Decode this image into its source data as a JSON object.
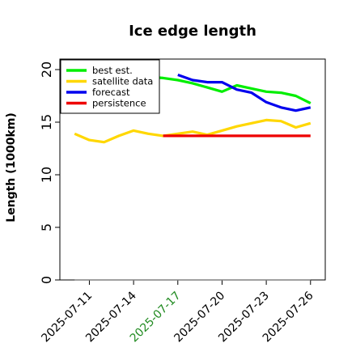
{
  "chart_data": {
    "type": "line",
    "title": "Ice edge length",
    "ylabel": "Length (1000km)",
    "xlabel": "",
    "ylim": [
      0,
      21
    ],
    "xlim": [
      "2025-07-09",
      "2025-07-27"
    ],
    "yticks": [
      0,
      5,
      10,
      15,
      20
    ],
    "ytick_labels": [
      "0",
      "5",
      "10",
      "15",
      "20"
    ],
    "xticks": [
      "2025-07-11",
      "2025-07-14",
      "2025-07-17",
      "2025-07-20",
      "2025-07-23",
      "2025-07-26"
    ],
    "xtick_labels": [
      "2025-07-11",
      "2025-07-14",
      "2025-07-17",
      "2025-07-20",
      "2025-07-23",
      "2025-07-26"
    ],
    "xtick_colors": [
      "#000000",
      "#000000",
      "#228b22",
      "#000000",
      "#000000",
      "#000000"
    ],
    "grid": false,
    "legend_position": "top-left",
    "baseline": {
      "y": 0,
      "x_range": [
        "2025-07-10",
        "2025-07-26"
      ],
      "color": "#808080"
    },
    "series": [
      {
        "name": "best est.",
        "color": "#00ee00",
        "x": [
          "2025-07-10",
          "2025-07-11",
          "2025-07-12",
          "2025-07-13",
          "2025-07-14",
          "2025-07-15",
          "2025-07-16",
          "2025-07-17",
          "2025-07-18",
          "2025-07-19",
          "2025-07-20",
          "2025-07-21",
          "2025-07-22",
          "2025-07-23",
          "2025-07-24",
          "2025-07-25",
          "2025-07-26"
        ],
        "values": [
          18.2,
          18.2,
          18.6,
          18.8,
          19.1,
          19.3,
          19.2,
          19.0,
          18.7,
          18.3,
          17.9,
          18.5,
          18.2,
          17.9,
          17.8,
          17.5,
          16.8
        ]
      },
      {
        "name": "satellite data",
        "color": "#ffd700",
        "x": [
          "2025-07-10",
          "2025-07-11",
          "2025-07-12",
          "2025-07-13",
          "2025-07-14",
          "2025-07-15",
          "2025-07-16",
          "2025-07-17",
          "2025-07-18",
          "2025-07-19",
          "2025-07-20",
          "2025-07-21",
          "2025-07-22",
          "2025-07-23",
          "2025-07-24",
          "2025-07-25",
          "2025-07-26"
        ],
        "values": [
          13.9,
          13.3,
          13.1,
          13.7,
          14.2,
          13.9,
          13.7,
          13.9,
          14.1,
          13.8,
          14.2,
          14.6,
          14.9,
          15.2,
          15.1,
          14.5,
          14.9
        ]
      },
      {
        "name": "forecast",
        "color": "#0000ee",
        "x": [
          "2025-07-17",
          "2025-07-18",
          "2025-07-19",
          "2025-07-20",
          "2025-07-21",
          "2025-07-22",
          "2025-07-23",
          "2025-07-24",
          "2025-07-25",
          "2025-07-26"
        ],
        "values": [
          19.5,
          19.0,
          18.8,
          18.8,
          18.1,
          17.8,
          16.9,
          16.4,
          16.1,
          16.4
        ]
      },
      {
        "name": "persistence",
        "color": "#ee0000",
        "x": [
          "2025-07-16",
          "2025-07-26"
        ],
        "values": [
          13.7,
          13.7
        ]
      }
    ]
  }
}
